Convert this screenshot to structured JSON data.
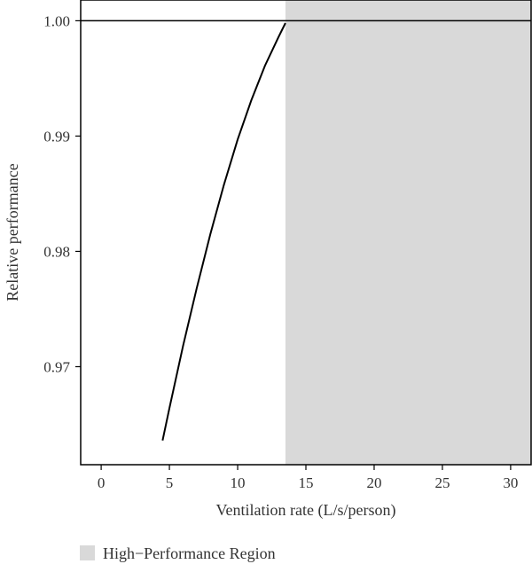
{
  "chart_data": {
    "type": "line",
    "xlabel": "Ventilation rate (L/s/person)",
    "ylabel": "Relative performance",
    "xlim": [
      -1.5,
      31.5
    ],
    "ylim": [
      0.9615,
      1.0018
    ],
    "x_ticks": [
      0,
      5,
      10,
      15,
      20,
      25,
      30
    ],
    "y_ticks": [
      0.97,
      0.98,
      0.99,
      1.0
    ],
    "y_tick_labels": [
      "0.97",
      "0.98",
      "0.99",
      "1.00"
    ],
    "grid": false,
    "reference_line": {
      "y": 1.0
    },
    "shaded_region": {
      "x_start": 13.5,
      "x_end": 31.5,
      "label": "High−Performance Region",
      "color": "#d9d9d9"
    },
    "legend_position": "bottom-left",
    "series": [
      {
        "color": "#000000",
        "points": [
          {
            "x": 4.5,
            "y": 0.9636
          },
          {
            "x": 5.0,
            "y": 0.9664
          },
          {
            "x": 6.0,
            "y": 0.9718
          },
          {
            "x": 7.0,
            "y": 0.9768
          },
          {
            "x": 8.0,
            "y": 0.9815
          },
          {
            "x": 9.0,
            "y": 0.9858
          },
          {
            "x": 10.0,
            "y": 0.9897
          },
          {
            "x": 11.0,
            "y": 0.9931
          },
          {
            "x": 12.0,
            "y": 0.9961
          },
          {
            "x": 13.0,
            "y": 0.9986
          },
          {
            "x": 13.5,
            "y": 0.9998
          }
        ]
      }
    ]
  }
}
